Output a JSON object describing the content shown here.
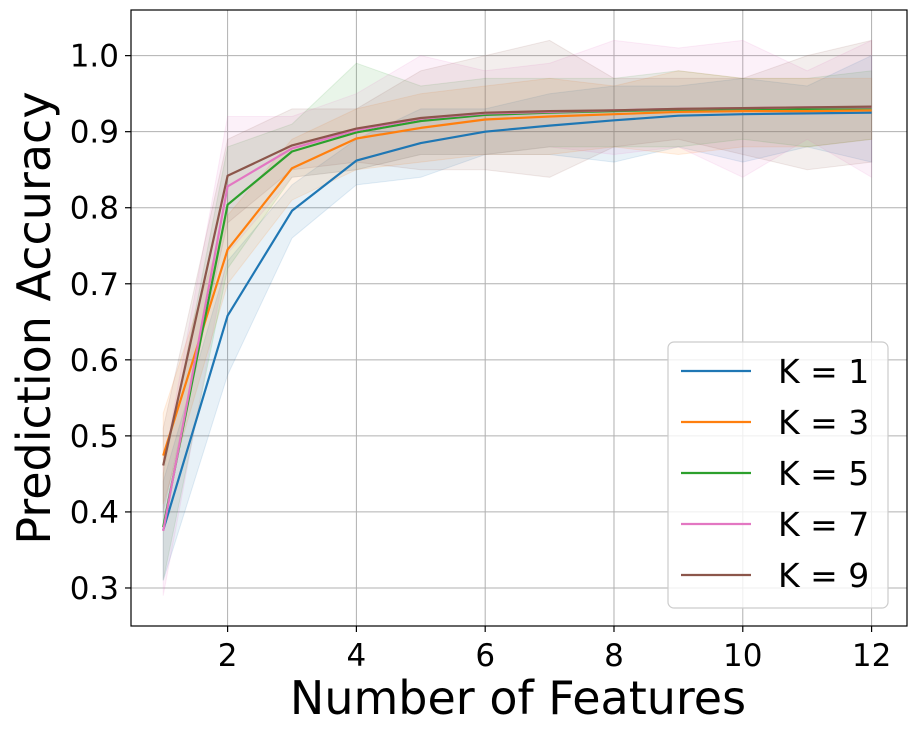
{
  "chart_data": {
    "type": "line",
    "xlabel": "Number of Features",
    "ylabel": "Prediction Accuracy",
    "xlim": [
      0.5,
      12.55
    ],
    "ylim": [
      0.25,
      1.06
    ],
    "xticks": [
      2,
      4,
      6,
      8,
      10,
      12
    ],
    "xtick_labels": [
      "2",
      "4",
      "6",
      "8",
      "10",
      "12"
    ],
    "yticks": [
      0.3,
      0.4,
      0.5,
      0.6,
      0.7,
      0.8,
      0.9,
      1.0
    ],
    "ytick_labels": [
      "0.3",
      "0.4",
      "0.5",
      "0.6",
      "0.7",
      "0.8",
      "0.9",
      "1.0"
    ],
    "grid": true,
    "legend_position": "bottom-right",
    "x": [
      1,
      2,
      3,
      4,
      5,
      6,
      7,
      8,
      9,
      10,
      11,
      12
    ],
    "series": [
      {
        "name": "K = 1",
        "color": "#1f77b4",
        "values": [
          0.376,
          0.658,
          0.796,
          0.862,
          0.885,
          0.9,
          0.908,
          0.915,
          0.921,
          0.923,
          0.924,
          0.925
        ],
        "lower": [
          0.31,
          0.58,
          0.76,
          0.83,
          0.84,
          0.87,
          0.87,
          0.86,
          0.88,
          0.86,
          0.88,
          0.86
        ],
        "upper": [
          0.44,
          0.73,
          0.83,
          0.89,
          0.93,
          0.93,
          0.95,
          0.96,
          0.96,
          0.97,
          0.96,
          1.0
        ]
      },
      {
        "name": "K = 3",
        "color": "#ff7f0e",
        "values": [
          0.474,
          0.745,
          0.852,
          0.891,
          0.905,
          0.916,
          0.92,
          0.923,
          0.926,
          0.927,
          0.927,
          0.928
        ],
        "lower": [
          0.41,
          0.7,
          0.81,
          0.85,
          0.86,
          0.87,
          0.87,
          0.88,
          0.87,
          0.88,
          0.88,
          0.89
        ],
        "upper": [
          0.53,
          0.79,
          0.89,
          0.93,
          0.95,
          0.96,
          0.97,
          0.96,
          0.98,
          0.97,
          0.97,
          0.97
        ]
      },
      {
        "name": "K = 5",
        "color": "#2ca02c",
        "values": [
          0.38,
          0.804,
          0.874,
          0.899,
          0.914,
          0.922,
          0.925,
          0.927,
          0.929,
          0.93,
          0.93,
          0.931
        ],
        "lower": [
          0.31,
          0.72,
          0.84,
          0.85,
          0.87,
          0.87,
          0.88,
          0.88,
          0.88,
          0.89,
          0.88,
          0.89
        ],
        "upper": [
          0.45,
          0.88,
          0.91,
          0.99,
          0.96,
          0.97,
          0.97,
          0.97,
          0.98,
          0.97,
          0.97,
          0.98
        ]
      },
      {
        "name": "K = 7",
        "color": "#e377c2",
        "values": [
          0.375,
          0.828,
          0.878,
          0.902,
          0.917,
          0.924,
          0.926,
          0.928,
          0.93,
          0.931,
          0.932,
          0.932
        ],
        "lower": [
          0.29,
          0.74,
          0.84,
          0.85,
          0.87,
          0.87,
          0.88,
          0.87,
          0.88,
          0.84,
          0.89,
          0.84
        ],
        "upper": [
          0.46,
          0.92,
          0.92,
          0.95,
          1.0,
          0.98,
          0.99,
          1.02,
          1.01,
          1.02,
          0.98,
          1.02
        ]
      },
      {
        "name": "K = 9",
        "color": "#8c564b",
        "values": [
          0.461,
          0.842,
          0.882,
          0.904,
          0.918,
          0.925,
          0.927,
          0.928,
          0.93,
          0.931,
          0.932,
          0.933
        ],
        "lower": [
          0.4,
          0.78,
          0.85,
          0.86,
          0.85,
          0.85,
          0.84,
          0.88,
          0.89,
          0.87,
          0.85,
          0.86
        ],
        "upper": [
          0.51,
          0.89,
          0.93,
          0.93,
          0.98,
          1.0,
          1.02,
          0.97,
          0.97,
          0.97,
          1.0,
          1.02
        ]
      }
    ]
  }
}
